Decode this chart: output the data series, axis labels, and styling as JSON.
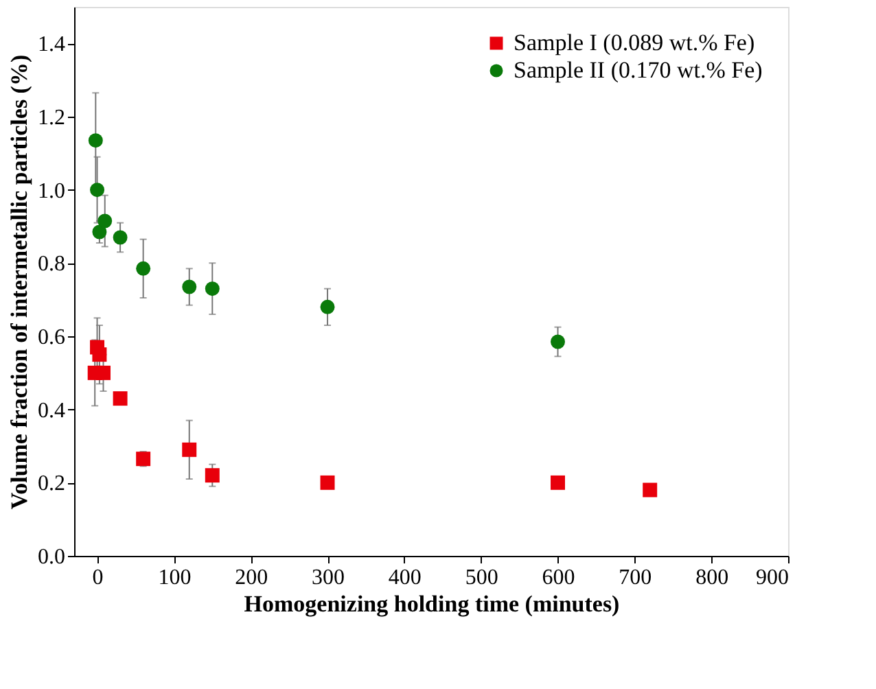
{
  "chart_data": {
    "type": "scatter",
    "xlabel": "Homogenizing holding time (minutes)",
    "ylabel": "Volume fraction of intermetallic particles (%)",
    "xlim": [
      -30,
      900
    ],
    "xticks": [
      0,
      100,
      200,
      300,
      400,
      500,
      600,
      700,
      800,
      900
    ],
    "ylim": [
      0,
      1.5
    ],
    "yticks": [
      {
        "value": 0,
        "label": "0.0"
      },
      0.2,
      0.4,
      0.6,
      0.8,
      {
        "value": 1,
        "label": "1.0"
      },
      1.2,
      1.4
    ],
    "grid": false,
    "legend": "top right",
    "series": [
      {
        "name": "Sample I  (0.089 wt.% Fe)",
        "color": "#e8000b",
        "marker": "square",
        "x": [
          0,
          -3,
          3,
          8,
          30,
          60,
          120,
          150,
          300,
          600,
          720
        ],
        "values": [
          0.57,
          0.5,
          0.55,
          0.5,
          0.43,
          0.265,
          0.29,
          0.22,
          0.2,
          0.2,
          0.18
        ],
        "errors": [
          0.08,
          0.09,
          0.08,
          0.05,
          null,
          0.02,
          0.08,
          0.03,
          null,
          null,
          null
        ]
      },
      {
        "name": "Sample II (0.170 wt.% Fe)",
        "color": "#0a7a0a",
        "marker": "circle",
        "x": [
          -2,
          0,
          3,
          10,
          30,
          60,
          120,
          150,
          300,
          600
        ],
        "values": [
          1.135,
          1.0,
          0.885,
          0.915,
          0.87,
          0.785,
          0.735,
          0.73,
          0.68,
          0.585
        ],
        "errors": [
          0.13,
          0.09,
          0.03,
          0.07,
          0.04,
          0.08,
          0.05,
          0.07,
          0.05,
          0.04
        ]
      }
    ]
  }
}
